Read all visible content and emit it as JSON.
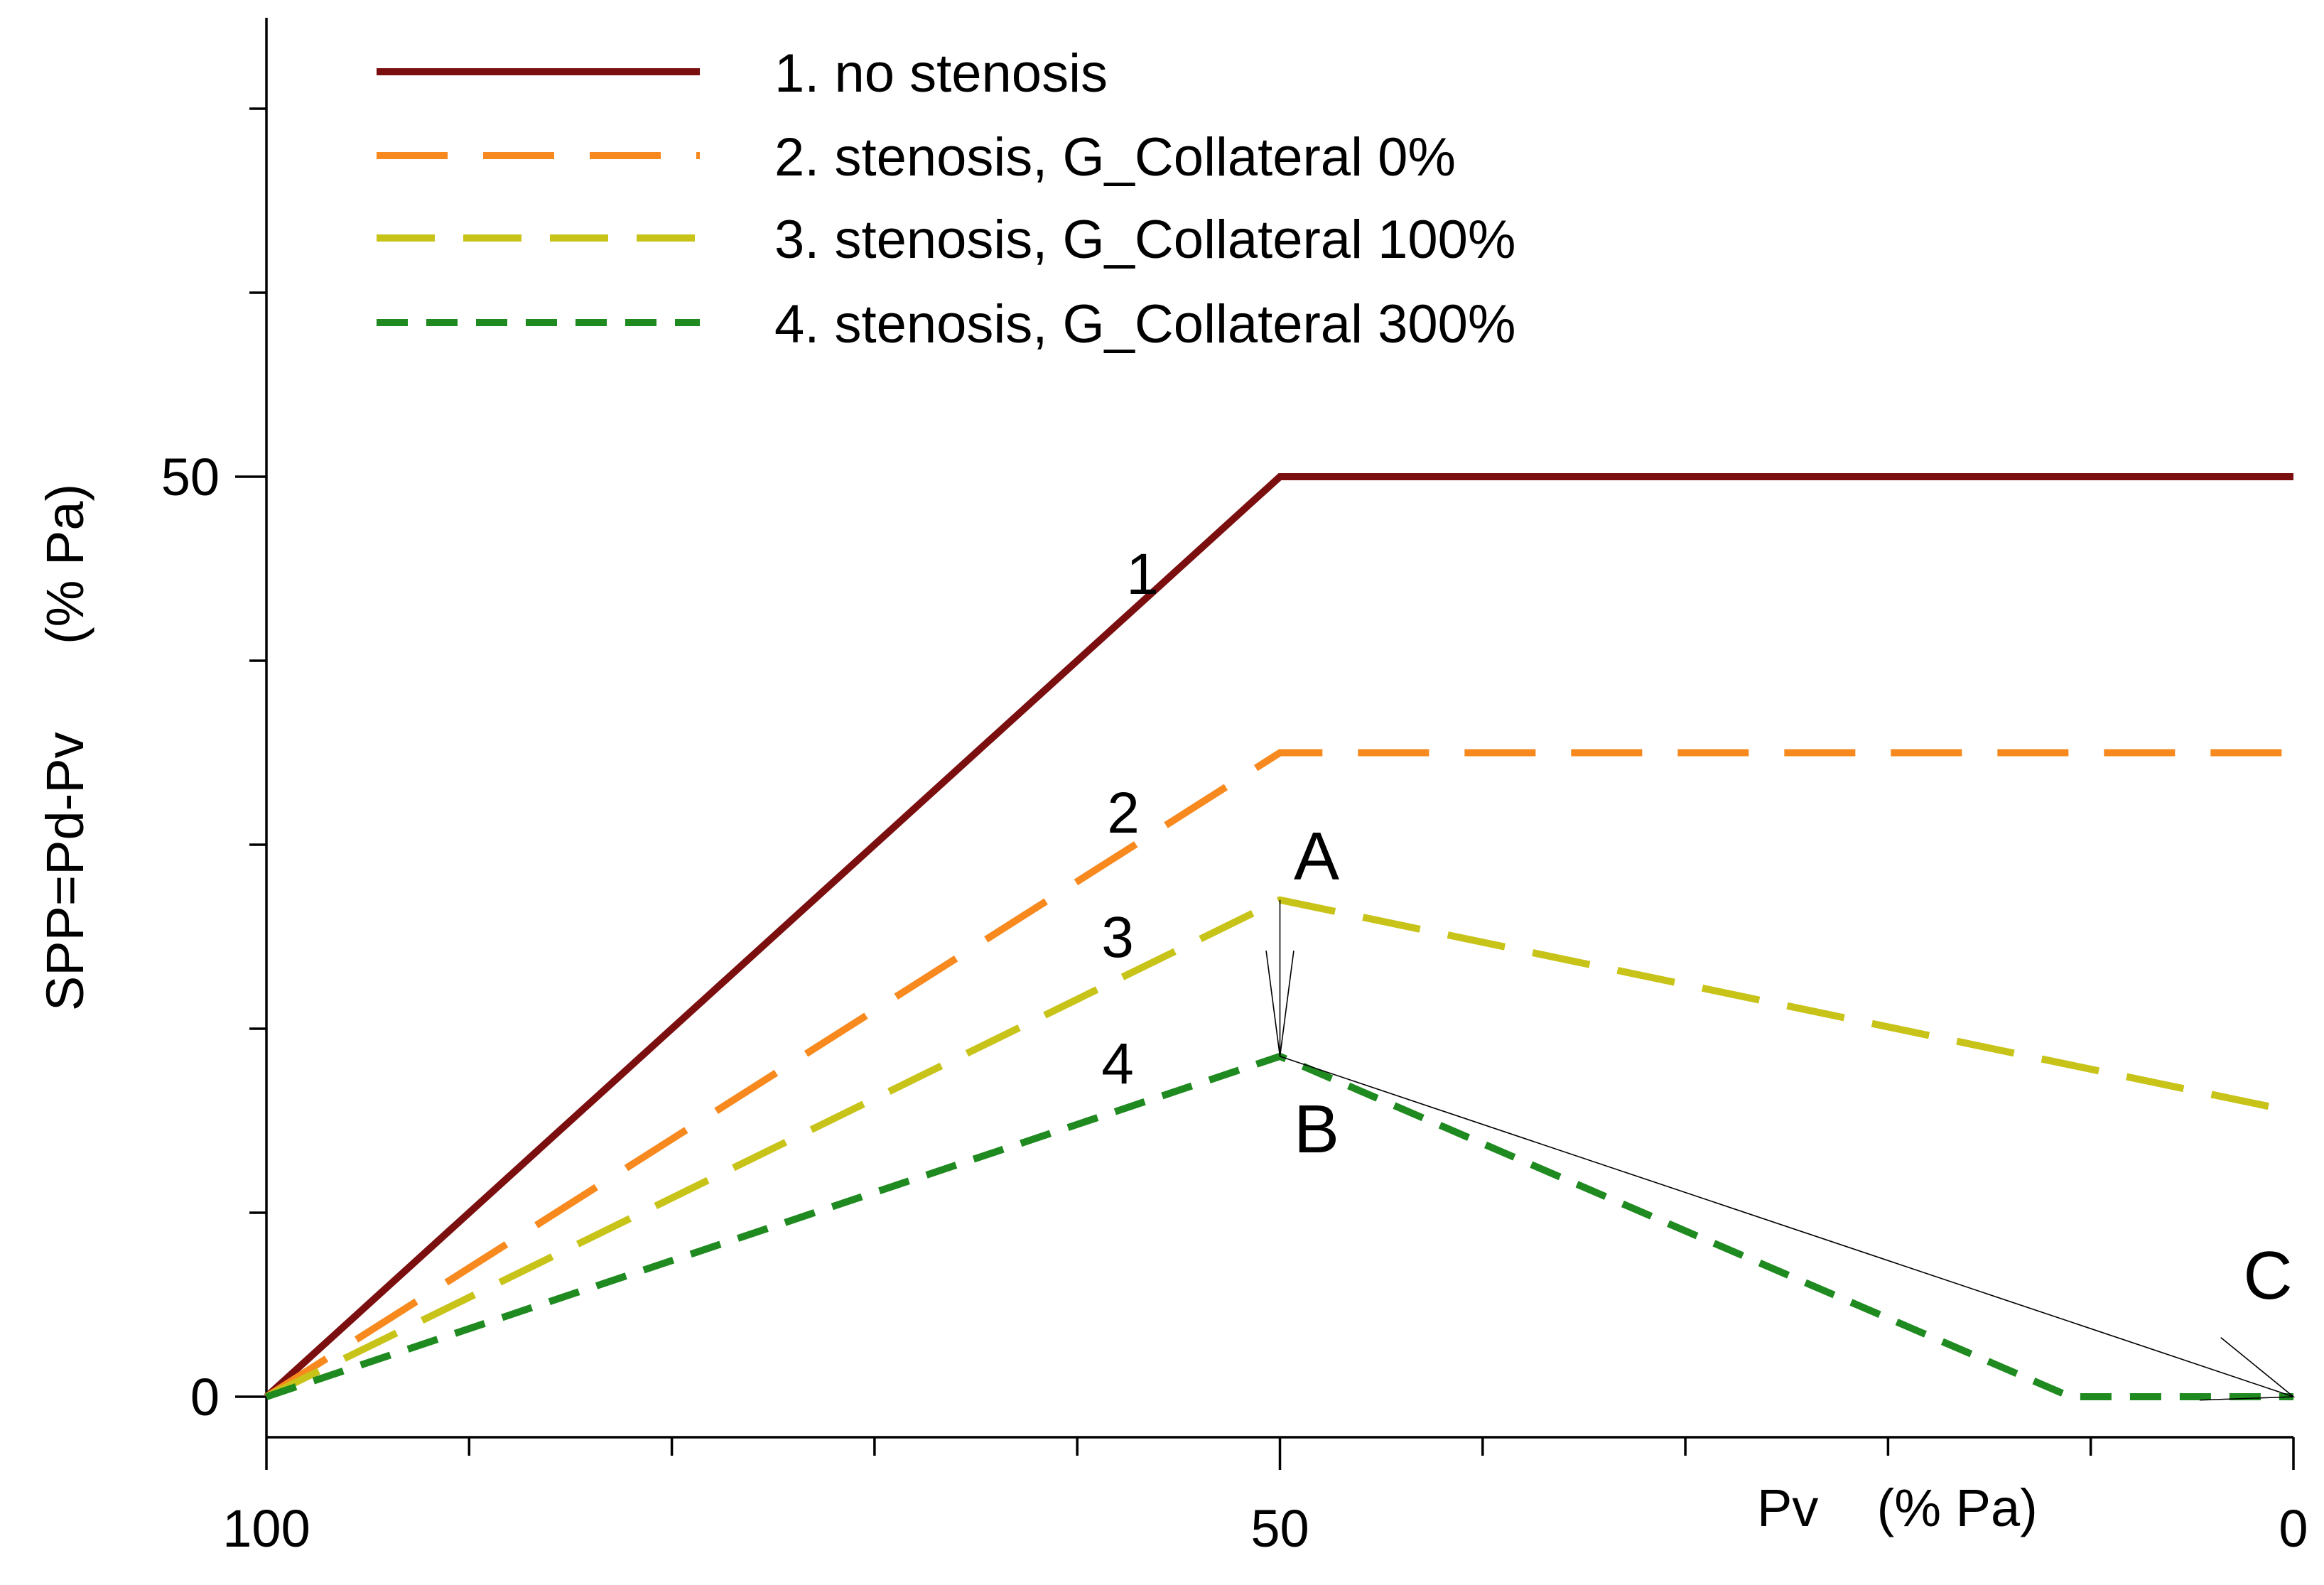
{
  "chart_data": {
    "type": "line",
    "xlabel": "Pv    (% Pa)",
    "ylabel": "SPP=Pd-Pv      (% Pa)",
    "xlim": [
      100,
      0
    ],
    "ylim": [
      -2,
      75
    ],
    "x_ticks": [
      100,
      50,
      0
    ],
    "x_minor_ticks": [
      90,
      80,
      70,
      60,
      40,
      30,
      20,
      10
    ],
    "y_ticks": [
      0,
      50
    ],
    "y_minor_ticks": [
      10,
      20,
      30,
      40,
      60,
      70
    ],
    "grid": false,
    "legend_position": "top",
    "series": [
      {
        "name": "1. no stenosis",
        "label": "1",
        "color": "#7b0f0f",
        "dash": "solid",
        "x": [
          100,
          50,
          0
        ],
        "y": [
          0,
          50,
          50
        ]
      },
      {
        "name": "2. stenosis, G_Collateral 0%",
        "label": "2",
        "color": "#f7891e",
        "dash": "long",
        "x": [
          100,
          50,
          0
        ],
        "y": [
          0,
          35,
          35
        ]
      },
      {
        "name": "3. stenosis, G_Collateral 100%",
        "label": "3",
        "color": "#c8c318",
        "dash": "medium",
        "x": [
          100,
          50,
          0
        ],
        "y": [
          0,
          27,
          15.5
        ]
      },
      {
        "name": "4. stenosis, G_Collateral 300%",
        "label": "4",
        "color": "#1f8a1f",
        "dash": "short",
        "x": [
          100,
          50,
          11,
          0
        ],
        "y": [
          0,
          18.5,
          0,
          0
        ]
      }
    ],
    "annotations": [
      {
        "text": "A",
        "x": 50,
        "y": 27
      },
      {
        "text": "B",
        "x": 50,
        "y": 18.5
      },
      {
        "text": "C",
        "x": 0,
        "y": 0
      }
    ],
    "arrows": [
      {
        "from": [
          50,
          27
        ],
        "to": [
          50,
          18.5
        ]
      },
      {
        "from": [
          50,
          18.5
        ],
        "to": [
          0,
          0
        ]
      }
    ]
  }
}
